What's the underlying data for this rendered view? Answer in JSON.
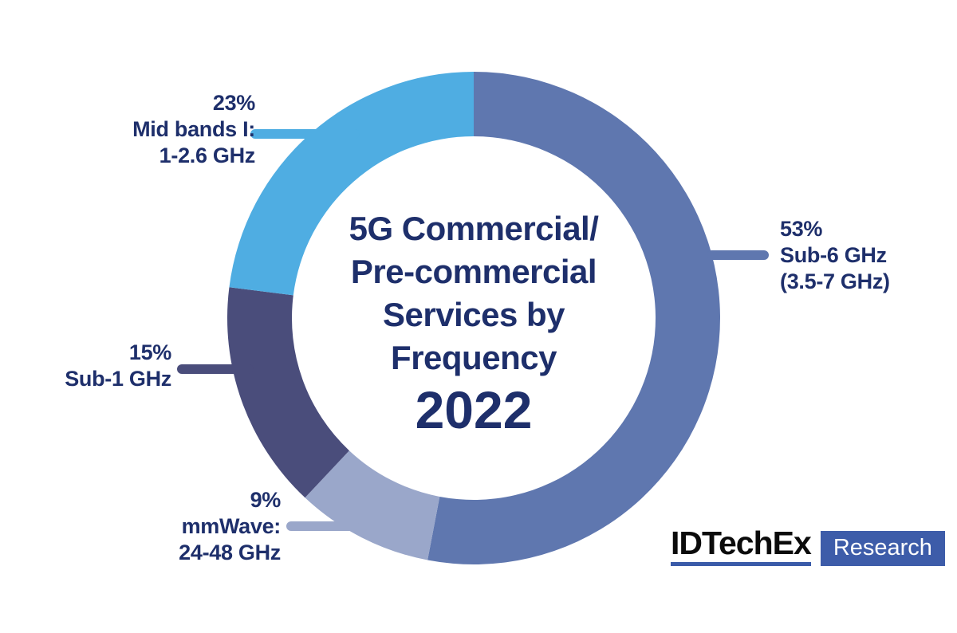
{
  "background": "#FFFFFF",
  "text_color": "#1E2F6B",
  "chart_data": {
    "type": "pie",
    "donut": true,
    "start_angle": "top",
    "direction": "clockwise",
    "title_lines": [
      "5G Commercial/",
      "Pre-commercial",
      "Services by",
      "Frequency"
    ],
    "year": "2022",
    "segments": [
      {
        "id": "sub-6-ghz",
        "value": 53,
        "pct": "53%",
        "line1": "Sub-6 GHz",
        "line2": "(3.5-7 GHz)",
        "color": "#5F77AF"
      },
      {
        "id": "mmwave",
        "value": 9,
        "pct": "9%",
        "line1": "mmWave:",
        "line2": "24-48 GHz",
        "color": "#9AA7CA"
      },
      {
        "id": "sub-1-ghz",
        "value": 15,
        "pct": "15%",
        "line1": "Sub-1 GHz",
        "line2": "",
        "color": "#4A4D7B"
      },
      {
        "id": "mid-bands-i",
        "value": 23,
        "pct": "23%",
        "line1": "Mid bands I:",
        "line2": "1-2.6 GHz",
        "color": "#4FADE2"
      }
    ]
  },
  "logo": {
    "brand": "IDTechEx",
    "tag": "Research",
    "underline_color": "#3A5BA9",
    "box_color": "#3D5CA9"
  }
}
